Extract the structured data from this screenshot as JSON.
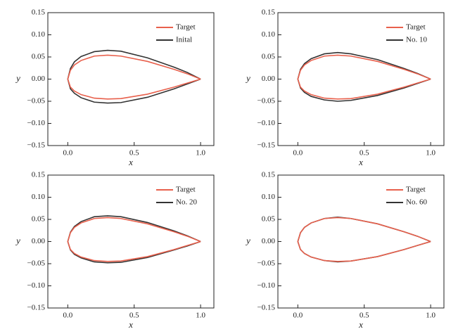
{
  "chart_data": [
    {
      "type": "line",
      "xlabel": "x",
      "ylabel": "y",
      "xlim": [
        -0.15,
        1.1
      ],
      "ylim": [
        -0.15,
        0.15
      ],
      "legend": "upper right",
      "xticks": [
        {
          "value": 0,
          "label": "0.0"
        },
        {
          "value": 0.5,
          "label": "0.5"
        },
        {
          "value": 1,
          "label": "1.0"
        }
      ],
      "yticks": [
        {
          "value": -0.15,
          "label": "−0.15"
        },
        {
          "value": -0.1,
          "label": "−0.10"
        },
        {
          "value": -0.05,
          "label": "−0.05"
        },
        {
          "value": 0,
          "label": "0.00"
        },
        {
          "value": 0.05,
          "label": "0.05"
        },
        {
          "value": 0.1,
          "label": "0.10"
        },
        {
          "value": 0.15,
          "label": "0.15"
        }
      ],
      "x": [
        1.0,
        0.9,
        0.8,
        0.6,
        0.4,
        0.3,
        0.2,
        0.1,
        0.05,
        0.02,
        0.0,
        0.02,
        0.05,
        0.1,
        0.2,
        0.3,
        0.4,
        0.6,
        0.8,
        0.9,
        1.0
      ],
      "series": [
        {
          "name": "Target",
          "color": "#e8604c",
          "values": [
            0,
            0.012,
            0.022,
            0.04,
            0.052,
            0.054,
            0.052,
            0.042,
            0.032,
            0.02,
            0,
            -0.018,
            -0.027,
            -0.035,
            -0.043,
            -0.045,
            -0.044,
            -0.034,
            -0.018,
            -0.009,
            0
          ]
        },
        {
          "name": "Inital",
          "color": "#333333",
          "values": [
            0,
            0.015,
            0.027,
            0.048,
            0.063,
            0.065,
            0.062,
            0.051,
            0.039,
            0.024,
            0,
            -0.022,
            -0.032,
            -0.042,
            -0.052,
            -0.054,
            -0.053,
            -0.041,
            -0.022,
            -0.011,
            0
          ]
        }
      ]
    },
    {
      "type": "line",
      "xlabel": "x",
      "ylabel": "y",
      "xlim": [
        -0.15,
        1.1
      ],
      "ylim": [
        -0.15,
        0.15
      ],
      "legend": "upper right",
      "xticks": [
        {
          "value": 0,
          "label": "0.0"
        },
        {
          "value": 0.5,
          "label": "0.5"
        },
        {
          "value": 1,
          "label": "1.0"
        }
      ],
      "yticks": [
        {
          "value": -0.15,
          "label": "−0.15"
        },
        {
          "value": -0.1,
          "label": "−0.10"
        },
        {
          "value": -0.05,
          "label": "−0.05"
        },
        {
          "value": 0,
          "label": "0.00"
        },
        {
          "value": 0.05,
          "label": "0.05"
        },
        {
          "value": 0.1,
          "label": "0.10"
        },
        {
          "value": 0.15,
          "label": "0.15"
        }
      ],
      "x": [
        1.0,
        0.9,
        0.8,
        0.6,
        0.4,
        0.3,
        0.2,
        0.1,
        0.05,
        0.02,
        0.0,
        0.02,
        0.05,
        0.1,
        0.2,
        0.3,
        0.4,
        0.6,
        0.8,
        0.9,
        1.0
      ],
      "series": [
        {
          "name": "Target",
          "color": "#e8604c",
          "values": [
            0,
            0.012,
            0.022,
            0.04,
            0.052,
            0.054,
            0.052,
            0.042,
            0.032,
            0.02,
            0,
            -0.018,
            -0.027,
            -0.035,
            -0.043,
            -0.045,
            -0.044,
            -0.034,
            -0.018,
            -0.009,
            0
          ]
        },
        {
          "name": "No. 10",
          "color": "#333333",
          "values": [
            0,
            0.013,
            0.024,
            0.044,
            0.057,
            0.06,
            0.057,
            0.046,
            0.035,
            0.022,
            0,
            -0.02,
            -0.03,
            -0.039,
            -0.047,
            -0.05,
            -0.048,
            -0.037,
            -0.02,
            -0.01,
            0
          ]
        }
      ]
    },
    {
      "type": "line",
      "xlabel": "x",
      "ylabel": "y",
      "xlim": [
        -0.15,
        1.1
      ],
      "ylim": [
        -0.15,
        0.15
      ],
      "legend": "upper right",
      "xticks": [
        {
          "value": 0,
          "label": "0.0"
        },
        {
          "value": 0.5,
          "label": "0.5"
        },
        {
          "value": 1,
          "label": "1.0"
        }
      ],
      "yticks": [
        {
          "value": -0.15,
          "label": "−0.15"
        },
        {
          "value": -0.1,
          "label": "−0.10"
        },
        {
          "value": -0.05,
          "label": "−0.05"
        },
        {
          "value": 0,
          "label": "0.00"
        },
        {
          "value": 0.05,
          "label": "0.05"
        },
        {
          "value": 0.1,
          "label": "0.10"
        },
        {
          "value": 0.15,
          "label": "0.15"
        }
      ],
      "x": [
        1.0,
        0.9,
        0.8,
        0.6,
        0.4,
        0.3,
        0.2,
        0.1,
        0.05,
        0.02,
        0.0,
        0.02,
        0.05,
        0.1,
        0.2,
        0.3,
        0.4,
        0.6,
        0.8,
        0.9,
        1.0
      ],
      "series": [
        {
          "name": "Target",
          "color": "#e8604c",
          "values": [
            0,
            0.012,
            0.022,
            0.04,
            0.052,
            0.054,
            0.052,
            0.042,
            0.032,
            0.02,
            0,
            -0.018,
            -0.027,
            -0.035,
            -0.043,
            -0.045,
            -0.044,
            -0.034,
            -0.018,
            -0.009,
            0
          ]
        },
        {
          "name": "No. 20",
          "color": "#333333",
          "values": [
            0,
            0.013,
            0.024,
            0.043,
            0.056,
            0.058,
            0.056,
            0.045,
            0.034,
            0.021,
            0,
            -0.019,
            -0.029,
            -0.037,
            -0.046,
            -0.048,
            -0.047,
            -0.036,
            -0.019,
            -0.01,
            0
          ]
        }
      ]
    },
    {
      "type": "line",
      "xlabel": "x",
      "ylabel": "y",
      "xlim": [
        -0.15,
        1.1
      ],
      "ylim": [
        -0.15,
        0.15
      ],
      "legend": "upper right",
      "xticks": [
        {
          "value": 0,
          "label": "0.0"
        },
        {
          "value": 0.5,
          "label": "0.5"
        },
        {
          "value": 1,
          "label": "1.0"
        }
      ],
      "yticks": [
        {
          "value": -0.15,
          "label": "−0.15"
        },
        {
          "value": -0.1,
          "label": "−0.10"
        },
        {
          "value": -0.05,
          "label": "−0.05"
        },
        {
          "value": 0,
          "label": "0.00"
        },
        {
          "value": 0.05,
          "label": "0.05"
        },
        {
          "value": 0.1,
          "label": "0.10"
        },
        {
          "value": 0.15,
          "label": "0.15"
        }
      ],
      "x": [
        1.0,
        0.9,
        0.8,
        0.6,
        0.4,
        0.3,
        0.2,
        0.1,
        0.05,
        0.02,
        0.0,
        0.02,
        0.05,
        0.1,
        0.2,
        0.3,
        0.4,
        0.6,
        0.8,
        0.9,
        1.0
      ],
      "series": [
        {
          "name": "Target",
          "color": "#e8604c",
          "values": [
            0,
            0.012,
            0.022,
            0.04,
            0.052,
            0.054,
            0.052,
            0.042,
            0.032,
            0.02,
            0,
            -0.018,
            -0.027,
            -0.035,
            -0.043,
            -0.045,
            -0.044,
            -0.034,
            -0.018,
            -0.009,
            0
          ]
        },
        {
          "name": "No. 60",
          "color": "#333333",
          "values": [
            0,
            0.012,
            0.022,
            0.04,
            0.052,
            0.055,
            0.052,
            0.042,
            0.032,
            0.02,
            0,
            -0.018,
            -0.027,
            -0.035,
            -0.043,
            -0.046,
            -0.044,
            -0.034,
            -0.018,
            -0.009,
            0
          ]
        }
      ]
    }
  ]
}
